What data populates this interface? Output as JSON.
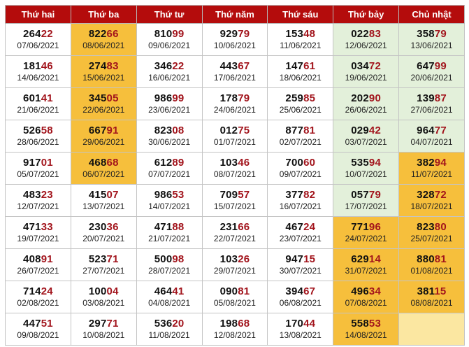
{
  "headers": [
    "Thứ hai",
    "Thứ ba",
    "Thứ tư",
    "Thứ năm",
    "Thứ sáu",
    "Thứ bảy",
    "Chủ nhật"
  ],
  "colors": {
    "header": "#b40c0c",
    "orange": "#f6bf3c",
    "green": "#e3f0da",
    "cream": "#fbe7a1",
    "tail_text": "#a2141c"
  },
  "rows": [
    [
      {
        "head": "264",
        "tail": "22",
        "date": "07/06/2021",
        "hl": ""
      },
      {
        "head": "822",
        "tail": "66",
        "date": "08/06/2021",
        "hl": "orange"
      },
      {
        "head": "810",
        "tail": "99",
        "date": "09/06/2021",
        "hl": ""
      },
      {
        "head": "929",
        "tail": "79",
        "date": "10/06/2021",
        "hl": ""
      },
      {
        "head": "153",
        "tail": "48",
        "date": "11/06/2021",
        "hl": ""
      },
      {
        "head": "022",
        "tail": "83",
        "date": "12/06/2021",
        "hl": "green"
      },
      {
        "head": "358",
        "tail": "79",
        "date": "13/06/2021",
        "hl": "green"
      }
    ],
    [
      {
        "head": "181",
        "tail": "46",
        "date": "14/06/2021",
        "hl": ""
      },
      {
        "head": "274",
        "tail": "83",
        "date": "15/06/2021",
        "hl": "orange"
      },
      {
        "head": "346",
        "tail": "22",
        "date": "16/06/2021",
        "hl": ""
      },
      {
        "head": "443",
        "tail": "67",
        "date": "17/06/2021",
        "hl": ""
      },
      {
        "head": "147",
        "tail": "61",
        "date": "18/06/2021",
        "hl": ""
      },
      {
        "head": "034",
        "tail": "72",
        "date": "19/06/2021",
        "hl": "green"
      },
      {
        "head": "647",
        "tail": "99",
        "date": "20/06/2021",
        "hl": "green"
      }
    ],
    [
      {
        "head": "601",
        "tail": "41",
        "date": "21/06/2021",
        "hl": ""
      },
      {
        "head": "345",
        "tail": "05",
        "date": "22/06/2021",
        "hl": "orange"
      },
      {
        "head": "986",
        "tail": "99",
        "date": "23/06/2021",
        "hl": ""
      },
      {
        "head": "178",
        "tail": "79",
        "date": "24/06/2021",
        "hl": ""
      },
      {
        "head": "259",
        "tail": "85",
        "date": "25/06/2021",
        "hl": ""
      },
      {
        "head": "202",
        "tail": "90",
        "date": "26/06/2021",
        "hl": "green"
      },
      {
        "head": "139",
        "tail": "87",
        "date": "27/06/2021",
        "hl": "green"
      }
    ],
    [
      {
        "head": "526",
        "tail": "58",
        "date": "28/06/2021",
        "hl": ""
      },
      {
        "head": "667",
        "tail": "91",
        "date": "29/06/2021",
        "hl": "orange"
      },
      {
        "head": "823",
        "tail": "08",
        "date": "30/06/2021",
        "hl": ""
      },
      {
        "head": "012",
        "tail": "75",
        "date": "01/07/2021",
        "hl": ""
      },
      {
        "head": "877",
        "tail": "81",
        "date": "02/07/2021",
        "hl": ""
      },
      {
        "head": "029",
        "tail": "42",
        "date": "03/07/2021",
        "hl": "green"
      },
      {
        "head": "964",
        "tail": "77",
        "date": "04/07/2021",
        "hl": "green"
      }
    ],
    [
      {
        "head": "917",
        "tail": "01",
        "date": "05/07/2021",
        "hl": ""
      },
      {
        "head": "468",
        "tail": "68",
        "date": "06/07/2021",
        "hl": "orange"
      },
      {
        "head": "612",
        "tail": "89",
        "date": "07/07/2021",
        "hl": ""
      },
      {
        "head": "103",
        "tail": "46",
        "date": "08/07/2021",
        "hl": ""
      },
      {
        "head": "700",
        "tail": "60",
        "date": "09/07/2021",
        "hl": ""
      },
      {
        "head": "535",
        "tail": "94",
        "date": "10/07/2021",
        "hl": "green"
      },
      {
        "head": "382",
        "tail": "94",
        "date": "11/07/2021",
        "hl": "orange"
      }
    ],
    [
      {
        "head": "483",
        "tail": "23",
        "date": "12/07/2021",
        "hl": ""
      },
      {
        "head": "415",
        "tail": "07",
        "date": "13/07/2021",
        "hl": ""
      },
      {
        "head": "986",
        "tail": "53",
        "date": "14/07/2021",
        "hl": ""
      },
      {
        "head": "709",
        "tail": "57",
        "date": "15/07/2021",
        "hl": ""
      },
      {
        "head": "377",
        "tail": "82",
        "date": "16/07/2021",
        "hl": ""
      },
      {
        "head": "057",
        "tail": "79",
        "date": "17/07/2021",
        "hl": "green"
      },
      {
        "head": "328",
        "tail": "72",
        "date": "18/07/2021",
        "hl": "orange"
      }
    ],
    [
      {
        "head": "471",
        "tail": "33",
        "date": "19/07/2021",
        "hl": ""
      },
      {
        "head": "230",
        "tail": "36",
        "date": "20/07/2021",
        "hl": ""
      },
      {
        "head": "471",
        "tail": "88",
        "date": "21/07/2021",
        "hl": ""
      },
      {
        "head": "231",
        "tail": "66",
        "date": "22/07/2021",
        "hl": ""
      },
      {
        "head": "467",
        "tail": "24",
        "date": "23/07/2021",
        "hl": ""
      },
      {
        "head": "771",
        "tail": "96",
        "date": "24/07/2021",
        "hl": "orange"
      },
      {
        "head": "823",
        "tail": "80",
        "date": "25/07/2021",
        "hl": "orange"
      }
    ],
    [
      {
        "head": "408",
        "tail": "91",
        "date": "26/07/2021",
        "hl": ""
      },
      {
        "head": "523",
        "tail": "71",
        "date": "27/07/2021",
        "hl": ""
      },
      {
        "head": "500",
        "tail": "98",
        "date": "28/07/2021",
        "hl": ""
      },
      {
        "head": "103",
        "tail": "26",
        "date": "29/07/2021",
        "hl": ""
      },
      {
        "head": "947",
        "tail": "15",
        "date": "30/07/2021",
        "hl": ""
      },
      {
        "head": "629",
        "tail": "14",
        "date": "31/07/2021",
        "hl": "orange"
      },
      {
        "head": "880",
        "tail": "81",
        "date": "01/08/2021",
        "hl": "orange"
      }
    ],
    [
      {
        "head": "714",
        "tail": "24",
        "date": "02/08/2021",
        "hl": ""
      },
      {
        "head": "100",
        "tail": "04",
        "date": "03/08/2021",
        "hl": ""
      },
      {
        "head": "464",
        "tail": "41",
        "date": "04/08/2021",
        "hl": ""
      },
      {
        "head": "090",
        "tail": "81",
        "date": "05/08/2021",
        "hl": ""
      },
      {
        "head": "394",
        "tail": "67",
        "date": "06/08/2021",
        "hl": ""
      },
      {
        "head": "496",
        "tail": "34",
        "date": "07/08/2021",
        "hl": "orange"
      },
      {
        "head": "381",
        "tail": "15",
        "date": "08/08/2021",
        "hl": "orange"
      }
    ],
    [
      {
        "head": "447",
        "tail": "51",
        "date": "09/08/2021",
        "hl": ""
      },
      {
        "head": "297",
        "tail": "71",
        "date": "10/08/2021",
        "hl": ""
      },
      {
        "head": "536",
        "tail": "20",
        "date": "11/08/2021",
        "hl": ""
      },
      {
        "head": "198",
        "tail": "68",
        "date": "12/08/2021",
        "hl": ""
      },
      {
        "head": "170",
        "tail": "44",
        "date": "13/08/2021",
        "hl": ""
      },
      {
        "head": "558",
        "tail": "53",
        "date": "14/08/2021",
        "hl": "orange"
      },
      {
        "head": "",
        "tail": "",
        "date": "",
        "hl": "cream"
      }
    ]
  ]
}
